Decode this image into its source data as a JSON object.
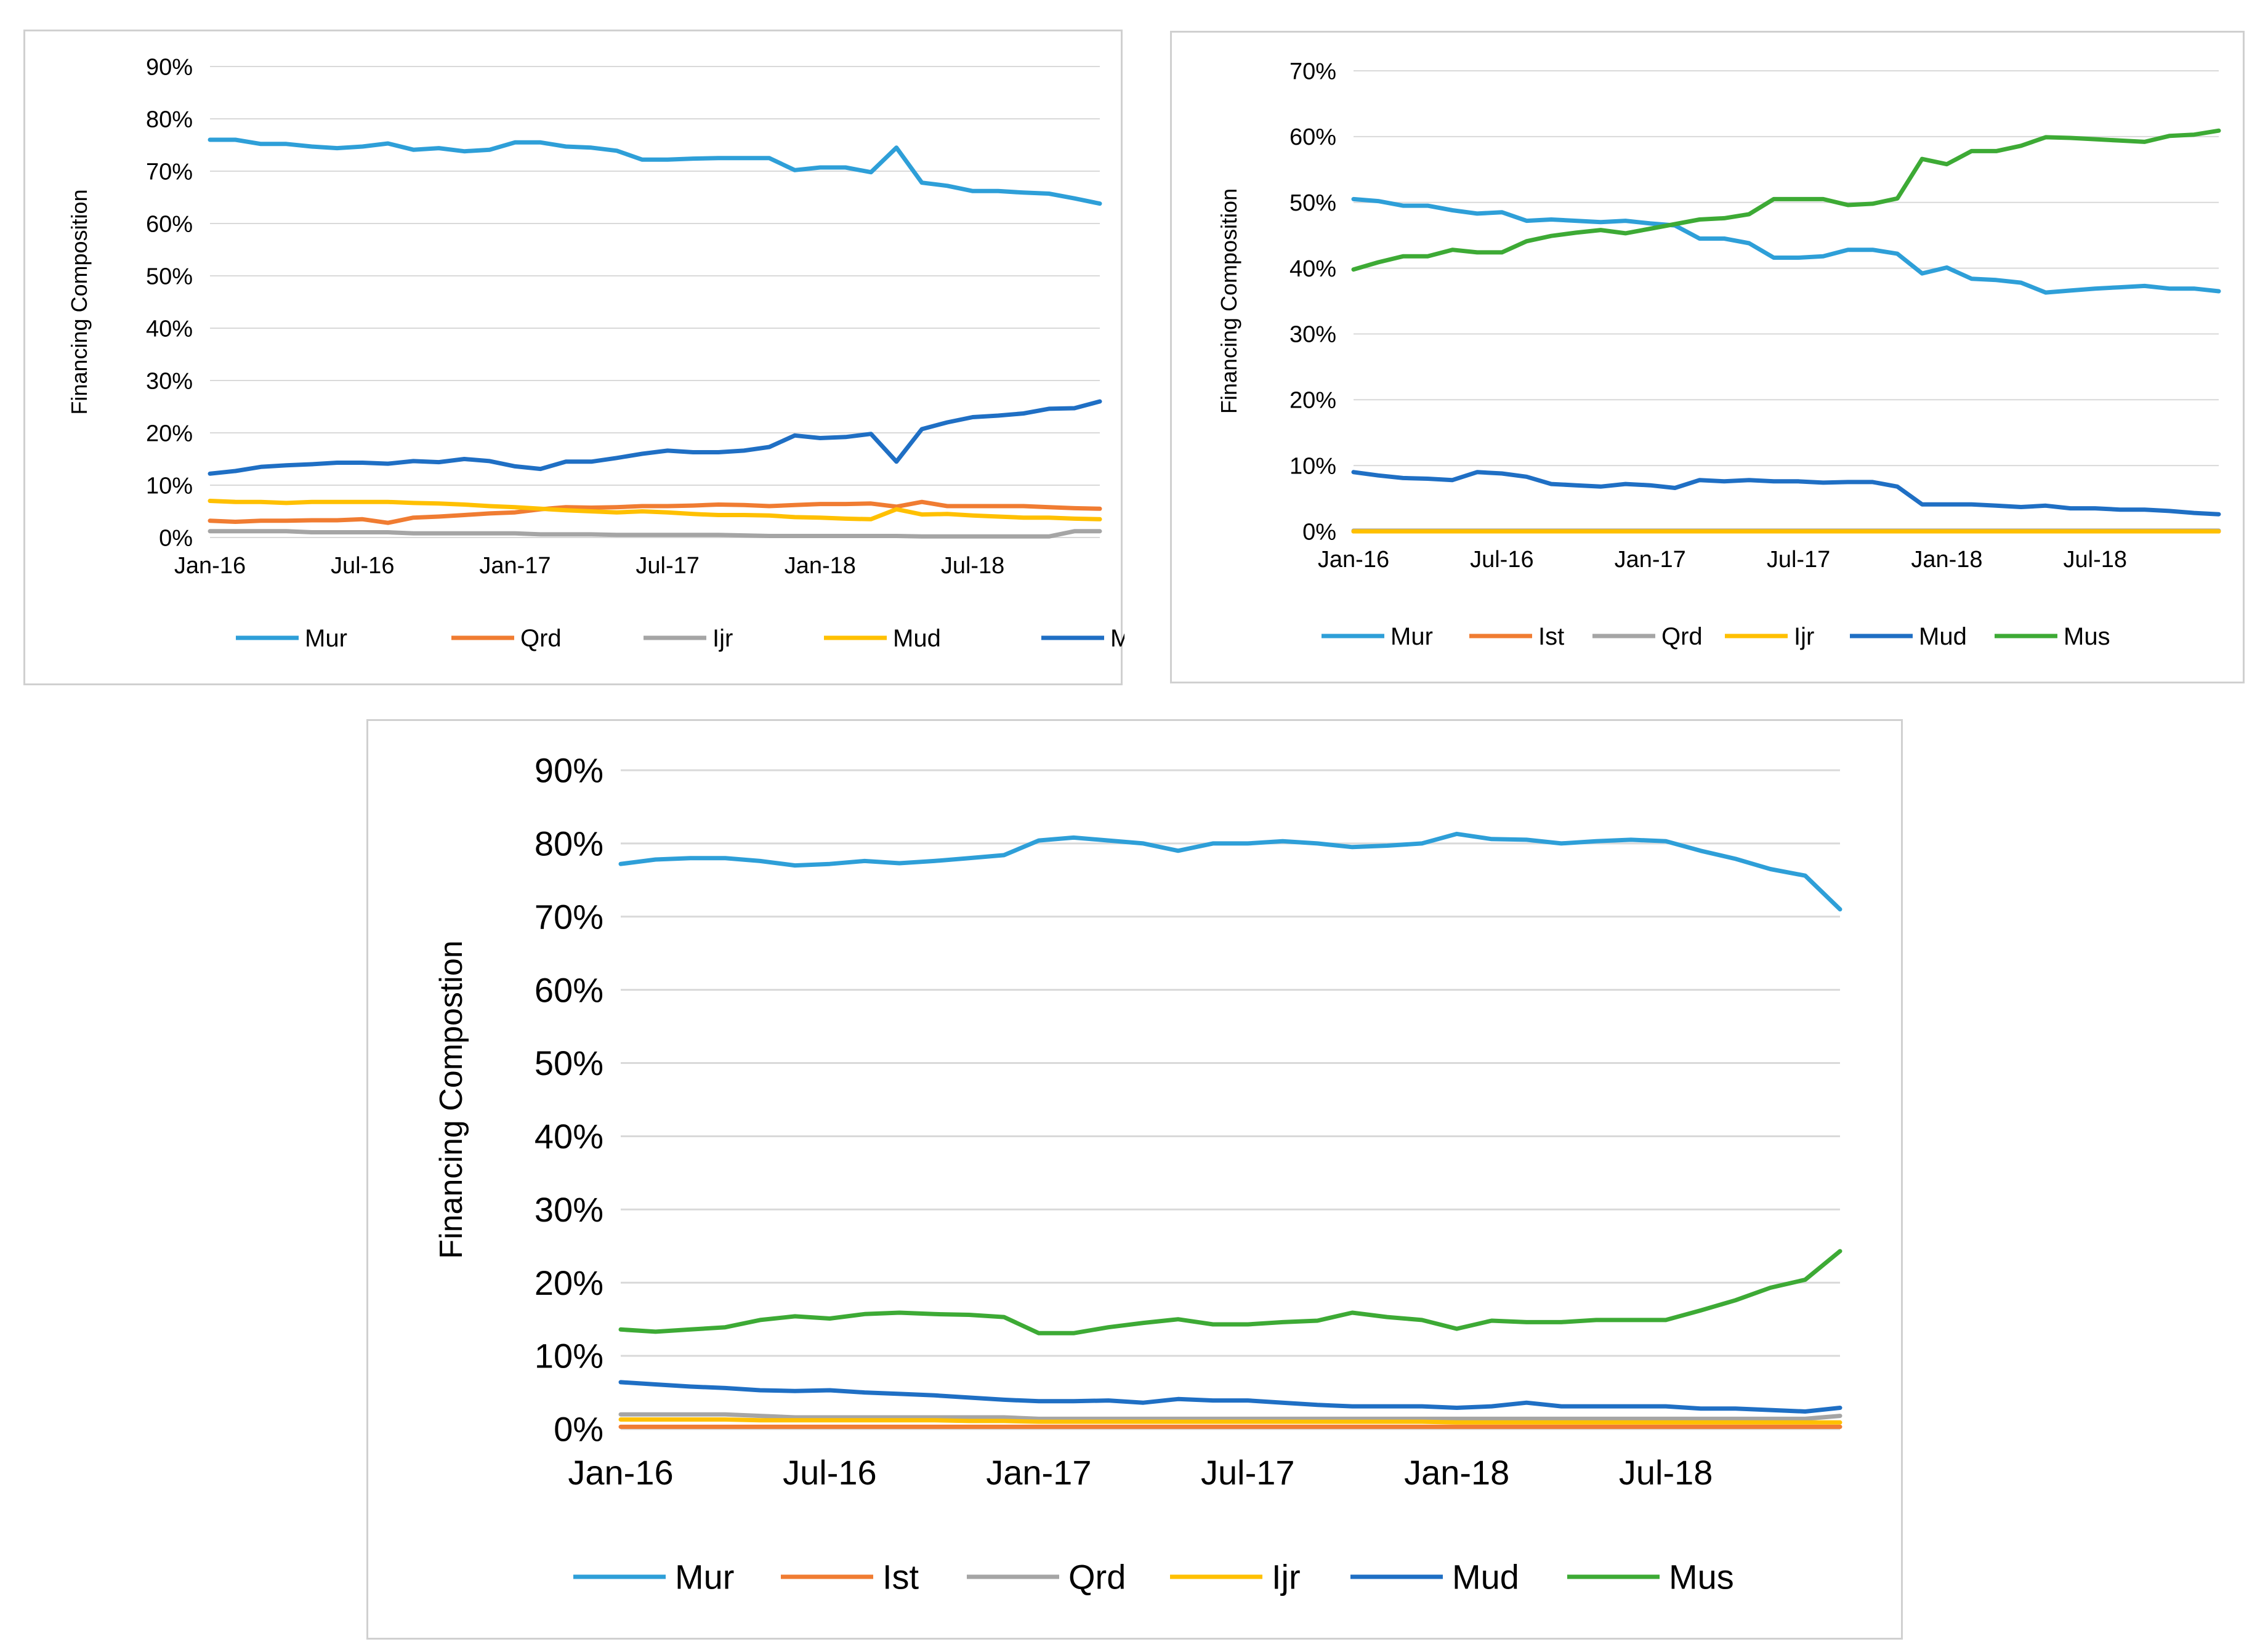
{
  "charts": [
    {
      "type": "line",
      "ylabel": "Financing Composition",
      "y_ticks": [
        "0%",
        "10%",
        "20%",
        "30%",
        "40%",
        "50%",
        "60%",
        "70%",
        "80%",
        "90%"
      ],
      "x_ticks": [
        "Jan-16",
        "Jul-16",
        "Jan-17",
        "Jul-17",
        "Jan-18",
        "Jul-18"
      ],
      "legend": [
        "Mur",
        "Qrd",
        "Ijr",
        "Mud",
        "Mus"
      ]
    },
    {
      "type": "line",
      "ylabel": "Financing Composition",
      "y_ticks": [
        "0%",
        "10%",
        "20%",
        "30%",
        "40%",
        "50%",
        "60%",
        "70%"
      ],
      "x_ticks": [
        "Jan-16",
        "Jul-16",
        "Jan-17",
        "Jul-17",
        "Jan-18",
        "Jul-18"
      ],
      "legend": [
        "Mur",
        "Ist",
        "Qrd",
        "Ijr",
        "Mud",
        "Mus"
      ]
    },
    {
      "type": "line",
      "ylabel": "Financing Compostion",
      "y_ticks": [
        "0%",
        "10%",
        "20%",
        "30%",
        "40%",
        "50%",
        "60%",
        "70%",
        "80%",
        "90%"
      ],
      "x_ticks": [
        "Jan-16",
        "Jul-16",
        "Jan-17",
        "Jul-17",
        "Jan-18",
        "Jul-18"
      ],
      "legend": [
        "Mur",
        "Ist",
        "Qrd",
        "Ijr",
        "Mud",
        "Mus"
      ]
    }
  ],
  "chart_data": [
    {
      "type": "line",
      "title": "",
      "xlabel": "",
      "ylabel": "Financing Composition",
      "x_start": "Jan-16",
      "x_step": "1 month",
      "ylim": [
        0,
        90
      ],
      "legend_position": "bottom",
      "series": [
        {
          "name": "Mur",
          "color": "#2e9fd8",
          "values": [
            76,
            76,
            75.2,
            75.2,
            74.7,
            74.4,
            74.7,
            75.3,
            74.1,
            74.4,
            73.8,
            74.1,
            75.5,
            75.5,
            74.7,
            74.5,
            73.9,
            72.2,
            72.2,
            72.4,
            72.5,
            72.5,
            72.5,
            70.2,
            70.7,
            70.7,
            69.8,
            74.5,
            67.8,
            67.2,
            66.2,
            66.2,
            65.9,
            65.7,
            64.8,
            63.8
          ]
        },
        {
          "name": "Qrd",
          "color": "#f07c32",
          "values": [
            3.2,
            3,
            3.2,
            3.2,
            3.3,
            3.3,
            3.5,
            2.8,
            3.8,
            4,
            4.3,
            4.6,
            4.8,
            5.4,
            5.8,
            5.7,
            5.8,
            6,
            6,
            6.1,
            6.3,
            6.2,
            6,
            6.2,
            6.4,
            6.4,
            6.5,
            5.9,
            6.8,
            6,
            6,
            6,
            6,
            5.8,
            5.6,
            5.5
          ]
        },
        {
          "name": "Ijr",
          "color": "#a5a5a5",
          "values": [
            1.2,
            1.2,
            1.2,
            1.2,
            1,
            1,
            1,
            1,
            0.8,
            0.8,
            0.8,
            0.8,
            0.8,
            0.6,
            0.6,
            0.6,
            0.5,
            0.5,
            0.5,
            0.5,
            0.5,
            0.4,
            0.3,
            0.3,
            0.3,
            0.3,
            0.3,
            0.3,
            0.2,
            0.2,
            0.2,
            0.2,
            0.2,
            0.2,
            1.2,
            1.2
          ]
        },
        {
          "name": "Mud",
          "color": "#ffc000",
          "values": [
            7,
            6.8,
            6.8,
            6.6,
            6.8,
            6.8,
            6.8,
            6.8,
            6.6,
            6.5,
            6.3,
            6,
            5.8,
            5.5,
            5.2,
            5,
            4.8,
            5,
            4.8,
            4.5,
            4.3,
            4.3,
            4.2,
            3.9,
            3.8,
            3.6,
            3.5,
            5.4,
            4.4,
            4.5,
            4.2,
            4,
            3.8,
            3.8,
            3.6,
            3.5
          ]
        },
        {
          "name": "Mus",
          "color": "#1f6fc4",
          "values": [
            12.2,
            12.7,
            13.5,
            13.8,
            14,
            14.3,
            14.3,
            14.1,
            14.6,
            14.4,
            15,
            14.6,
            13.6,
            13.1,
            14.5,
            14.5,
            15.2,
            16,
            16.6,
            16.3,
            16.3,
            16.6,
            17.3,
            19.5,
            19,
            19.2,
            19.8,
            14.5,
            20.7,
            22,
            23,
            23.3,
            23.7,
            24.6,
            24.7,
            26
          ]
        }
      ]
    },
    {
      "type": "line",
      "title": "",
      "xlabel": "",
      "ylabel": "Financing Composition",
      "x_start": "Jan-16",
      "x_step": "1 month",
      "ylim": [
        0,
        70
      ],
      "legend_position": "bottom",
      "series": [
        {
          "name": "Mur",
          "color": "#2e9fd8",
          "values": [
            50.5,
            50.2,
            49.5,
            49.5,
            48.8,
            48.3,
            48.5,
            47.2,
            47.4,
            47.2,
            47,
            47.2,
            46.8,
            46.5,
            44.5,
            44.5,
            43.8,
            41.6,
            41.6,
            41.8,
            42.8,
            42.8,
            42.2,
            39.2,
            40.1,
            38.4,
            38.2,
            37.8,
            36.3,
            36.6,
            36.9,
            37.1,
            37.3,
            36.9,
            36.9,
            36.5
          ]
        },
        {
          "name": "Ist",
          "color": "#f07c32",
          "values": [
            0,
            0,
            0,
            0,
            0,
            0,
            0,
            0,
            0,
            0,
            0,
            0,
            0,
            0,
            0,
            0,
            0,
            0,
            0,
            0,
            0,
            0,
            0,
            0,
            0,
            0,
            0,
            0,
            0,
            0,
            0,
            0,
            0,
            0,
            0,
            0
          ]
        },
        {
          "name": "Qrd",
          "color": "#a5a5a5",
          "values": [
            0.1,
            0.1,
            0.1,
            0.1,
            0.1,
            0.1,
            0.1,
            0.1,
            0.1,
            0.1,
            0.1,
            0.1,
            0.1,
            0.1,
            0.1,
            0.1,
            0.1,
            0.1,
            0.1,
            0.1,
            0.1,
            0.1,
            0.1,
            0.1,
            0.1,
            0.1,
            0.1,
            0.1,
            0.1,
            0.1,
            0.1,
            0.1,
            0.1,
            0.1,
            0.1,
            0.1
          ]
        },
        {
          "name": "Ijr",
          "color": "#ffc000",
          "values": [
            0,
            0,
            0,
            0,
            0,
            0,
            0,
            0,
            0,
            0,
            0,
            0,
            0,
            0,
            0,
            0,
            0,
            0,
            0,
            0,
            0,
            0,
            0,
            0,
            0,
            0,
            0,
            0,
            0,
            0,
            0,
            0,
            0,
            0,
            0,
            0
          ]
        },
        {
          "name": "Mud",
          "color": "#1f6fc4",
          "values": [
            9,
            8.5,
            8.1,
            8,
            7.8,
            9,
            8.8,
            8.3,
            7.2,
            7,
            6.8,
            7.2,
            7,
            6.6,
            7.8,
            7.6,
            7.8,
            7.6,
            7.6,
            7.4,
            7.5,
            7.5,
            6.8,
            4.1,
            4.1,
            4.1,
            3.9,
            3.7,
            3.9,
            3.5,
            3.5,
            3.3,
            3.3,
            3.1,
            2.8,
            2.6
          ]
        },
        {
          "name": "Mus",
          "color": "#3daa35",
          "values": [
            39.8,
            40.9,
            41.8,
            41.8,
            42.8,
            42.4,
            42.4,
            44.1,
            44.9,
            45.4,
            45.8,
            45.3,
            46,
            46.7,
            47.4,
            47.6,
            48.2,
            50.5,
            50.5,
            50.5,
            49.6,
            49.8,
            50.6,
            56.6,
            55.8,
            57.8,
            57.8,
            58.6,
            59.9,
            59.8,
            59.6,
            59.4,
            59.2,
            60.1,
            60.3,
            60.9
          ]
        }
      ]
    },
    {
      "type": "line",
      "title": "",
      "xlabel": "",
      "ylabel": "Financing Compostion",
      "x_start": "Jan-16",
      "x_step": "1 month",
      "ylim": [
        0,
        90
      ],
      "legend_position": "bottom",
      "series": [
        {
          "name": "Mur",
          "color": "#2e9fd8",
          "values": [
            77.2,
            77.8,
            78,
            78,
            77.6,
            77,
            77.2,
            77.6,
            77.3,
            77.6,
            78,
            78.4,
            80.4,
            80.8,
            80.4,
            80,
            79,
            80,
            80,
            80.3,
            80,
            79.5,
            79.7,
            80,
            81.3,
            80.6,
            80.5,
            80,
            80.3,
            80.5,
            80.3,
            79,
            77.9,
            76.5,
            75.6,
            71
          ]
        },
        {
          "name": "Ist",
          "color": "#f07c32",
          "values": [
            0.3,
            0.3,
            0.3,
            0.3,
            0.3,
            0.3,
            0.3,
            0.3,
            0.3,
            0.3,
            0.3,
            0.3,
            0.3,
            0.3,
            0.3,
            0.3,
            0.3,
            0.3,
            0.3,
            0.3,
            0.3,
            0.3,
            0.3,
            0.3,
            0.3,
            0.3,
            0.3,
            0.3,
            0.3,
            0.3,
            0.3,
            0.3,
            0.3,
            0.3,
            0.3,
            0.3
          ]
        },
        {
          "name": "Qrd",
          "color": "#a5a5a5",
          "values": [
            2,
            2,
            2,
            2,
            1.8,
            1.6,
            1.6,
            1.6,
            1.6,
            1.6,
            1.6,
            1.6,
            1.4,
            1.4,
            1.4,
            1.4,
            1.4,
            1.4,
            1.4,
            1.4,
            1.4,
            1.4,
            1.4,
            1.4,
            1.4,
            1.4,
            1.4,
            1.4,
            1.4,
            1.4,
            1.4,
            1.4,
            1.4,
            1.4,
            1.4,
            1.8
          ]
        },
        {
          "name": "Ijr",
          "color": "#ffc000",
          "values": [
            1.3,
            1.3,
            1.3,
            1.3,
            1.2,
            1.2,
            1.2,
            1.2,
            1.2,
            1.2,
            1.1,
            1.1,
            1,
            1,
            1,
            1,
            1,
            1,
            1,
            1,
            1,
            1,
            1,
            1,
            0.9,
            0.9,
            0.9,
            0.9,
            0.9,
            0.9,
            0.9,
            0.9,
            0.9,
            0.9,
            0.9,
            0.9
          ]
        },
        {
          "name": "Mud",
          "color": "#1f6fc4",
          "values": [
            6.4,
            6.1,
            5.8,
            5.6,
            5.3,
            5.2,
            5.3,
            5,
            4.8,
            4.6,
            4.3,
            4,
            3.8,
            3.8,
            3.9,
            3.6,
            4.1,
            3.9,
            3.9,
            3.6,
            3.3,
            3.1,
            3.1,
            3.1,
            2.9,
            3.1,
            3.6,
            3.1,
            3.1,
            3.1,
            3.1,
            2.8,
            2.8,
            2.6,
            2.4,
            2.9
          ]
        },
        {
          "name": "Mus",
          "color": "#3daa35",
          "values": [
            13.6,
            13.3,
            13.6,
            13.9,
            14.9,
            15.4,
            15.1,
            15.7,
            15.9,
            15.7,
            15.6,
            15.3,
            13.1,
            13.1,
            13.9,
            14.5,
            15,
            14.3,
            14.3,
            14.6,
            14.8,
            15.9,
            15.3,
            14.9,
            13.7,
            14.8,
            14.6,
            14.6,
            14.9,
            14.9,
            14.9,
            16.2,
            17.6,
            19.3,
            20.4,
            24.3
          ]
        }
      ]
    }
  ]
}
